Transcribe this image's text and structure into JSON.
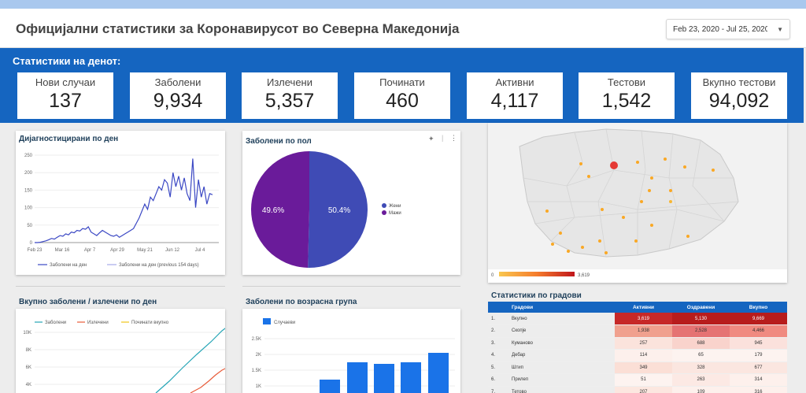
{
  "header": {
    "title": "Официјални статистики за Коронавирусот во Северна Македонија",
    "date_range": "Feb 23, 2020 - Jul 25, 2020",
    "caret_icon": "chevron-down-icon"
  },
  "kpis": {
    "title": "Статистики на денот:",
    "cards": [
      {
        "label": "Нови случаи",
        "value": "137"
      },
      {
        "label": "Заболени",
        "value": "9,934"
      },
      {
        "label": "Излечени",
        "value": "5,357"
      },
      {
        "label": "Починати",
        "value": "460"
      },
      {
        "label": "Активни",
        "value": "4,117"
      },
      {
        "label": "Тестови",
        "value": "1,542"
      },
      {
        "label": "Вкупно тестови",
        "value": "94,092"
      }
    ]
  },
  "panels": {
    "daily_title": "Дијагностицирани по ден",
    "gender_title": "Заболени по пол",
    "cumulative_title": "Вкупно заболени / излечени по ден",
    "age_title": "Заболени по возрасна група",
    "cities_title": "Статистики по градови"
  },
  "chart_data": [
    {
      "type": "line",
      "title": "Дијагностицирани по ден",
      "yticks": [
        "0",
        "50",
        "100",
        "150",
        "200",
        "250"
      ],
      "ylim": [
        0,
        250
      ],
      "xticks": [
        "Feb 23",
        "Mar 16",
        "Apr 7",
        "Apr 29",
        "May 21",
        "Jun 12",
        "Jul 4"
      ],
      "series": [
        {
          "name": "Заболени на ден",
          "values": [
            0,
            0,
            1,
            3,
            5,
            8,
            12,
            10,
            15,
            20,
            18,
            25,
            22,
            30,
            28,
            35,
            33,
            40,
            38,
            45,
            30,
            25,
            20,
            28,
            35,
            30,
            25,
            20,
            18,
            22,
            15,
            20,
            25,
            30,
            35,
            40,
            55,
            70,
            90,
            110,
            95,
            130,
            120,
            140,
            160,
            150,
            180,
            170,
            130,
            200,
            160,
            190,
            150,
            185,
            140,
            120,
            240,
            100,
            180,
            130,
            160,
            110,
            140,
            137
          ],
          "color": "#3b48c4"
        },
        {
          "name": "Заболени на ден (previous 154 days)",
          "values": [],
          "color": "#a7a9e8"
        }
      ],
      "legend_position": "bottom"
    },
    {
      "type": "pie",
      "title": "Заболени по пол",
      "categories": [
        "Жени",
        "Мажи"
      ],
      "values": [
        50.4,
        49.6
      ],
      "labels": [
        "50.4%",
        "49.6%"
      ],
      "colors": [
        "#3f4bb5",
        "#6a1b9a"
      ],
      "legend_position": "right"
    },
    {
      "type": "line",
      "title": "Вкупно заболени / излечени по ден",
      "yticks": [
        "4K",
        "6K",
        "8K",
        "10K"
      ],
      "series": [
        {
          "name": "Заболени",
          "color": "#26a5b6"
        },
        {
          "name": "Излечени",
          "color": "#e85c3a"
        },
        {
          "name": "Починати вкупно",
          "color": "#f0c419"
        }
      ],
      "legend_position": "top"
    },
    {
      "type": "bar",
      "title": "Заболени по возрасна група",
      "yticks": [
        "1K",
        "1.5K",
        "2K",
        "2.5K"
      ],
      "ylim": [
        700,
        2700
      ],
      "series": [
        {
          "name": "Случаеви",
          "values": [
            1200,
            1750,
            1700,
            1750,
            2050
          ],
          "color": "#1a73e8"
        }
      ],
      "legend_position": "top"
    }
  ],
  "map": {
    "scale_min": "0",
    "scale_max": "3,619"
  },
  "city_table": {
    "headers": [
      "Градови",
      "Активни",
      "Оздравени",
      "Вкупно"
    ],
    "rows": [
      {
        "idx": "1.",
        "name": "Вкупно",
        "active": "3,619",
        "recovered": "5,130",
        "total": "9,669",
        "c1": "#c62828",
        "c2": "#b71c1c",
        "c3": "#b71c1c"
      },
      {
        "idx": "2.",
        "name": "Скопје",
        "active": "1,938",
        "recovered": "2,528",
        "total": "4,466",
        "c1": "#f0a08e",
        "c2": "#e57373",
        "c3": "#f08a80"
      },
      {
        "idx": "3.",
        "name": "Куманово",
        "active": "257",
        "recovered": "688",
        "total": "945",
        "c1": "#fbe3dc",
        "c2": "#f9d3cc",
        "c3": "#fbe1dc"
      },
      {
        "idx": "4.",
        "name": "Дебар",
        "active": "114",
        "recovered": "65",
        "total": "179",
        "c1": "#fdf0ec",
        "c2": "#fdf3f0",
        "c3": "#fdf3f0"
      },
      {
        "idx": "5.",
        "name": "Штип",
        "active": "349",
        "recovered": "328",
        "total": "677",
        "c1": "#fbdfd6",
        "c2": "#fbe6e0",
        "c3": "#fbe6e0"
      },
      {
        "idx": "6.",
        "name": "Прилеп",
        "active": "51",
        "recovered": "263",
        "total": "314",
        "c1": "#fdf3f0",
        "c2": "#fce9e4",
        "c3": "#fdf0ec"
      },
      {
        "idx": "7.",
        "name": "Тетово",
        "active": "207",
        "recovered": "109",
        "total": "316",
        "c1": "#fce7e0",
        "c2": "#fdf0ec",
        "c3": "#fdf0ec"
      }
    ]
  }
}
